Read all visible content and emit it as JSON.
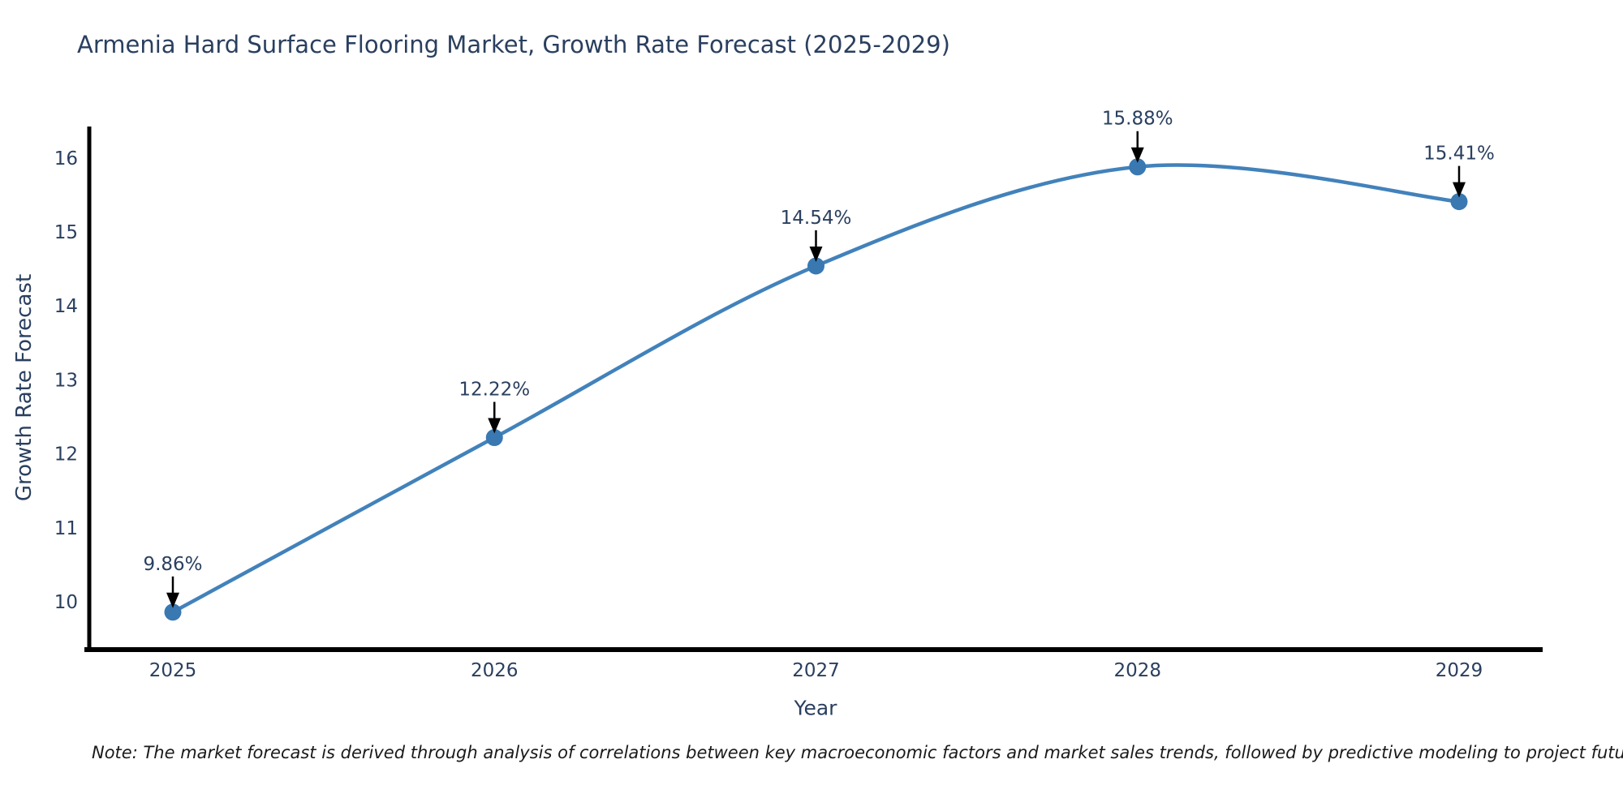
{
  "chart": {
    "title": "Armenia Hard Surface Flooring Market, Growth Rate Forecast (2025-2029)",
    "xlabel": "Year",
    "ylabel": "Growth Rate Forecast",
    "note": "Note: The market forecast is derived through analysis of correlations between key macroeconomic factors and market sales trends, followed by predictive modeling to project future sales"
  },
  "chart_data": {
    "type": "line",
    "line_shape": "spline",
    "x": [
      2025,
      2026,
      2027,
      2028,
      2029
    ],
    "values": [
      9.86,
      12.22,
      14.54,
      15.88,
      15.41
    ],
    "point_labels": [
      "9.86%",
      "12.22%",
      "14.54%",
      "15.88%",
      "15.41%"
    ],
    "title": "Armenia Hard Surface Flooring Market, Growth Rate Forecast (2025-2029)",
    "xlabel": "Year",
    "ylabel": "Growth Rate Forecast",
    "yticks": [
      10,
      11,
      12,
      13,
      14,
      15,
      16
    ],
    "xticks": [
      2025,
      2026,
      2027,
      2028,
      2029
    ],
    "ylim": [
      9.34,
      16.4
    ],
    "xlim": [
      2024.74,
      2029.26
    ],
    "grid": false,
    "legend": "none",
    "line_color": "#4282bb",
    "marker_color": "#3a78b2",
    "axis_color": "#000000",
    "text_color": "#2a3f5f",
    "annotation_arrow_color": "#000000"
  }
}
